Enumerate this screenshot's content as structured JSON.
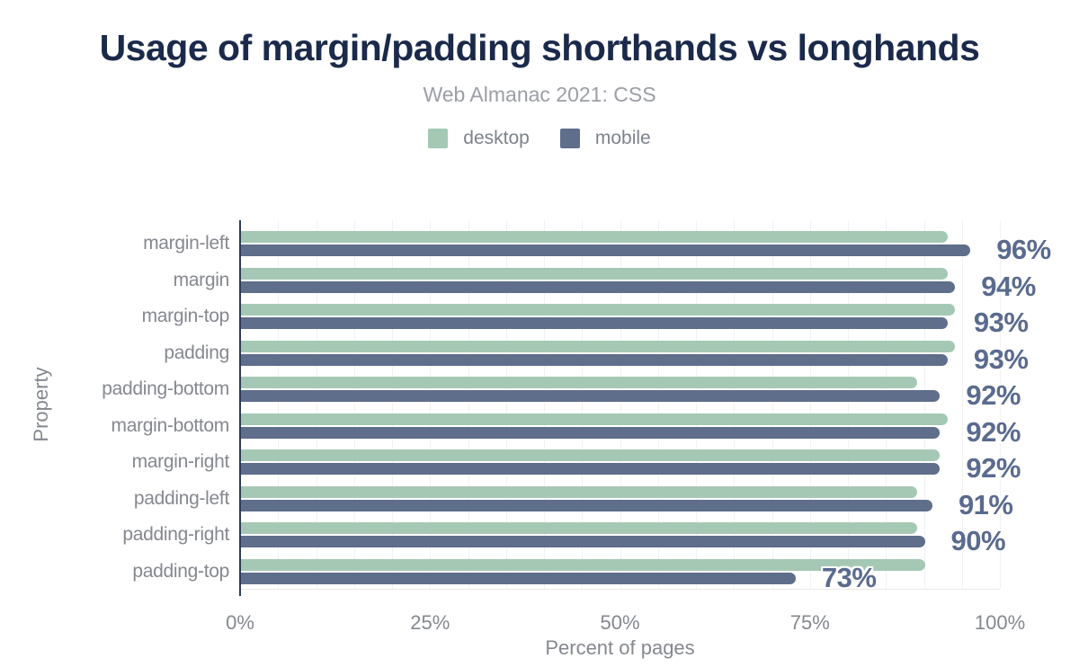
{
  "header": {
    "title": "Usage of margin/padding shorthands vs longhands",
    "subtitle": "Web Almanac 2021: CSS"
  },
  "legend": {
    "items": [
      {
        "label": "desktop",
        "color": "#a5c8b4"
      },
      {
        "label": "mobile",
        "color": "#5e6e8b"
      }
    ]
  },
  "chart_data": {
    "type": "bar",
    "orientation": "horizontal",
    "title": "Usage of margin/padding shorthands vs longhands",
    "subtitle": "Web Almanac 2021: CSS",
    "categories": [
      "margin-left",
      "margin",
      "margin-top",
      "padding",
      "padding-bottom",
      "margin-bottom",
      "margin-right",
      "padding-left",
      "padding-right",
      "padding-top"
    ],
    "series": [
      {
        "name": "desktop",
        "color": "#a5c8b4",
        "values": [
          93,
          93,
          94,
          94,
          89,
          93,
          92,
          89,
          89,
          90
        ]
      },
      {
        "name": "mobile",
        "color": "#5e6e8b",
        "values": [
          96,
          94,
          93,
          93,
          92,
          92,
          92,
          91,
          90,
          73
        ]
      }
    ],
    "bar_labels": [
      "96%",
      "94%",
      "93%",
      "93%",
      "92%",
      "92%",
      "92%",
      "91%",
      "90%",
      "73%"
    ],
    "bar_labels_series": "mobile",
    "xlabel": "Percent of pages",
    "ylabel": "Property",
    "xlim": [
      0,
      100
    ],
    "x_ticks": [
      {
        "value": 0,
        "label": "0%"
      },
      {
        "value": 25,
        "label": "25%"
      },
      {
        "value": 50,
        "label": "50%"
      },
      {
        "value": 75,
        "label": "75%"
      },
      {
        "value": 100,
        "label": "100%"
      }
    ],
    "grid_step_percent": 5,
    "grid_on": true,
    "legend_position": "top"
  },
  "colors": {
    "title": "#1b2a4a",
    "subtitle": "#9b9ea5",
    "axis_text": "#85888f",
    "value_label": "#5a6b8e",
    "axis_line": "#2e3b55",
    "gridline": "#f2f2f4",
    "baseline": "#e9e9ec",
    "background": "#ffffff"
  }
}
